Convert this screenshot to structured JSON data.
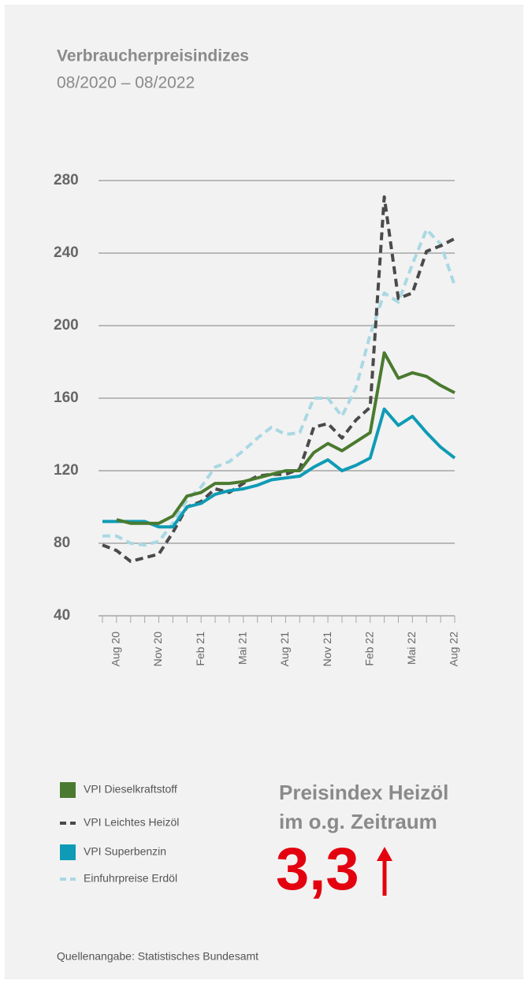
{
  "chart_data": {
    "type": "line",
    "title": "Verbraucherpreisindizes",
    "subtitle": "08/2020 – 08/2022",
    "categories": [
      null,
      "Aug 20",
      null,
      null,
      "Nov 20",
      null,
      null,
      "Feb 21",
      null,
      null,
      "Mai 21",
      null,
      null,
      "Aug 21",
      null,
      null,
      "Nov 21",
      null,
      null,
      "Feb 22",
      null,
      null,
      "Mai 22",
      null,
      null,
      "Aug 22"
    ],
    "ylim": [
      40,
      280
    ],
    "yticks": [
      40,
      80,
      120,
      160,
      200,
      240,
      280
    ],
    "grid": true,
    "series": [
      {
        "name": "VPI Dieselkraftstoff",
        "color": "#4a7a2f",
        "dashed": false,
        "values": [
          null,
          93,
          91,
          91,
          91,
          95,
          106,
          108,
          113,
          113,
          114,
          116,
          118,
          120,
          120,
          130,
          135,
          131,
          136,
          141,
          185,
          171,
          174,
          172,
          167,
          163
        ]
      },
      {
        "name": "VPI Leichtes Heizöl",
        "color": "#4a4a4a",
        "dashed": true,
        "values": [
          79,
          76,
          70,
          72,
          74,
          86,
          100,
          103,
          110,
          108,
          113,
          117,
          118,
          118,
          121,
          144,
          146,
          138,
          148,
          155,
          271,
          215,
          218,
          241,
          244,
          248
        ]
      },
      {
        "name": "VPI Superbenzin",
        "color": "#0f9bb5",
        "dashed": false,
        "values": [
          92,
          92,
          92,
          92,
          89,
          89,
          100,
          102,
          107,
          109,
          110,
          112,
          115,
          116,
          117,
          122,
          126,
          120,
          123,
          127,
          154,
          145,
          150,
          141,
          133,
          127
        ]
      },
      {
        "name": "Einfuhrpreise Erdöl",
        "color": "#a9d8e3",
        "dashed": true,
        "values": [
          84,
          84,
          80,
          79,
          81,
          91,
          104,
          111,
          122,
          125,
          131,
          138,
          144,
          140,
          141,
          160,
          160,
          150,
          166,
          195,
          218,
          213,
          234,
          253,
          245,
          222
        ]
      }
    ],
    "annotation": {
      "line1": "Preisindex Heizöl",
      "line2": "im o.g. Zeitraum",
      "value": "3,3"
    },
    "source": "Quellenangabe: Statistisches Bundesamt"
  }
}
